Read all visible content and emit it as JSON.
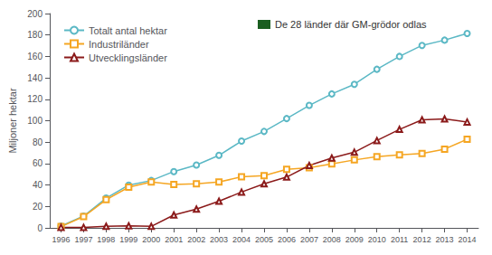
{
  "chart_data": {
    "type": "line",
    "x": [
      1996,
      1997,
      1998,
      1999,
      2000,
      2001,
      2002,
      2003,
      2004,
      2005,
      2006,
      2007,
      2008,
      2009,
      2010,
      2011,
      2012,
      2013,
      2014
    ],
    "series": [
      {
        "name": "Totalt antal hektar",
        "color": "#5bb8c5",
        "marker": "circle",
        "values": [
          1.7,
          11,
          27.8,
          39.9,
          44.2,
          52.6,
          58.7,
          67.7,
          81.0,
          90.0,
          102.0,
          114.3,
          125.0,
          134.0,
          148.0,
          160.0,
          170.3,
          175.2,
          181.5
        ]
      },
      {
        "name": "Industriländer",
        "color": "#f5a623",
        "marker": "square",
        "values": [
          1.2,
          10.5,
          26.3,
          38.0,
          42.8,
          40.6,
          41.2,
          42.8,
          47.6,
          48.8,
          54.6,
          56.1,
          59.8,
          63.4,
          66.5,
          68.1,
          69.5,
          73.5,
          82.7
        ]
      },
      {
        "name": "Utvecklingsländer",
        "color": "#8b1a1a",
        "marker": "triangle",
        "values": [
          0.5,
          0.5,
          1.5,
          1.9,
          1.4,
          12.0,
          17.5,
          24.9,
          33.4,
          41.2,
          47.4,
          58.2,
          65.2,
          70.6,
          81.5,
          91.9,
          100.8,
          101.7,
          98.8
        ]
      }
    ],
    "ylabel": "Miljoner hektar",
    "xlim": [
      1995.5,
      2014.5
    ],
    "xticks": [
      1996,
      1997,
      1998,
      1999,
      2000,
      2001,
      2002,
      2003,
      2004,
      2005,
      2006,
      2007,
      2008,
      2009,
      2010,
      2011,
      2012,
      2013,
      2014
    ],
    "ylim": [
      0,
      200
    ],
    "yticks": [
      0,
      20,
      40,
      60,
      80,
      100,
      120,
      140,
      160,
      180,
      200
    ],
    "grid": false,
    "legend": "upper left",
    "annotations": [
      {
        "text": "De 28 länder där GM-grödor odlas",
        "color": "#1a5e20"
      }
    ]
  }
}
